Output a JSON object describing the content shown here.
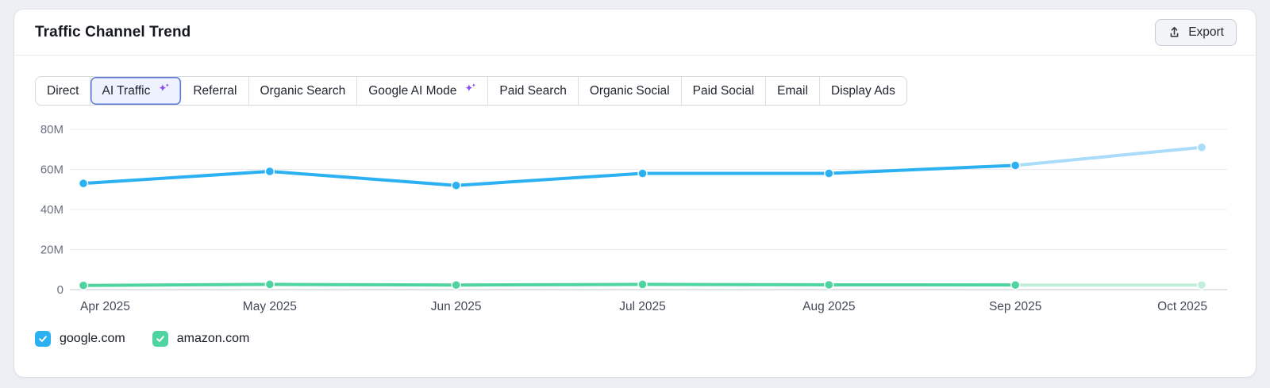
{
  "header": {
    "title": "Traffic Channel Trend",
    "export_label": "Export"
  },
  "tabs": [
    {
      "label": "Direct",
      "selected": false,
      "ai_icon": false
    },
    {
      "label": "AI Traffic",
      "selected": true,
      "ai_icon": true
    },
    {
      "label": "Referral",
      "selected": false,
      "ai_icon": false
    },
    {
      "label": "Organic Search",
      "selected": false,
      "ai_icon": false
    },
    {
      "label": "Google AI Mode",
      "selected": false,
      "ai_icon": true
    },
    {
      "label": "Paid Search",
      "selected": false,
      "ai_icon": false
    },
    {
      "label": "Organic Social",
      "selected": false,
      "ai_icon": false
    },
    {
      "label": "Paid Social",
      "selected": false,
      "ai_icon": false
    },
    {
      "label": "Email",
      "selected": false,
      "ai_icon": false
    },
    {
      "label": "Display Ads",
      "selected": false,
      "ai_icon": false
    }
  ],
  "chart_data": {
    "type": "line",
    "x": [
      "Apr 2025",
      "May 2025",
      "Jun 2025",
      "Jul 2025",
      "Aug 2025",
      "Sep 2025",
      "Oct 2025"
    ],
    "series": [
      {
        "name": "google.com",
        "color": "#2BB1F2",
        "forecast_color": "#A8DCF8",
        "values": [
          53,
          59,
          52,
          58,
          58,
          62,
          71
        ],
        "forecast_from_index": 5
      },
      {
        "name": "amazon.com",
        "color": "#4FD3A1",
        "forecast_color": "#C3EEDC",
        "values": [
          2.1,
          2.6,
          2.3,
          2.6,
          2.4,
          2.3,
          2.3
        ],
        "forecast_from_index": 5
      }
    ],
    "ylabel": "",
    "xlabel": "",
    "unit": "M",
    "ylim": [
      0,
      80
    ],
    "yticks": [
      "0",
      "20M",
      "40M",
      "60M",
      "80M"
    ],
    "grid": true,
    "legend_position": "bottom"
  },
  "legend": [
    {
      "label": "google.com",
      "checked": true,
      "color": "#2BB1F2"
    },
    {
      "label": "amazon.com",
      "checked": true,
      "color": "#4FD3A1"
    }
  ],
  "colors": {
    "selected_tab_border": "#5C77CF",
    "selected_tab_bg": "#EDF2FE",
    "sparkle": "#8A4BEF",
    "gridline": "#E9EBF0",
    "axis_line": "#D5D8DE",
    "y_tick_text": "#6A7180",
    "x_tick_text": "#434A58"
  }
}
